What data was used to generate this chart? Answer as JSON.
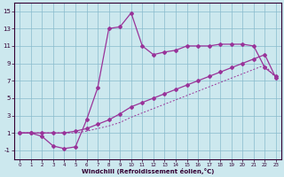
{
  "xlabel": "Windchill (Refroidissement éolien,°C)",
  "background_color": "#cce8ee",
  "grid_color": "#88bbcc",
  "line_color": "#993399",
  "xlim": [
    -0.5,
    23.5
  ],
  "ylim": [
    -2.0,
    16.0
  ],
  "xticks": [
    0,
    1,
    2,
    3,
    4,
    5,
    6,
    7,
    8,
    9,
    10,
    11,
    12,
    13,
    14,
    15,
    16,
    17,
    18,
    19,
    20,
    21,
    22,
    23
  ],
  "yticks": [
    -1,
    1,
    3,
    5,
    7,
    9,
    11,
    13,
    15
  ],
  "series1_x": [
    0,
    1,
    2,
    3,
    4,
    5,
    6,
    7,
    8,
    9,
    10,
    11,
    12,
    13,
    14,
    15,
    16,
    17,
    18,
    19,
    20,
    21,
    22,
    23
  ],
  "series1_y": [
    1.0,
    1.0,
    0.6,
    -0.5,
    -0.8,
    -0.6,
    2.5,
    6.2,
    13.0,
    13.2,
    14.8,
    11.0,
    10.0,
    10.3,
    10.5,
    11.0,
    11.0,
    11.0,
    11.2,
    11.2,
    11.2,
    11.0,
    8.5,
    7.5
  ],
  "series2_x": [
    0,
    1,
    2,
    3,
    4,
    5,
    6,
    7,
    8,
    9,
    10,
    11,
    12,
    13,
    14,
    15,
    16,
    17,
    18,
    19,
    20,
    21,
    22,
    23
  ],
  "series2_y": [
    1.0,
    1.0,
    1.0,
    1.0,
    1.0,
    1.2,
    1.5,
    2.0,
    2.5,
    3.2,
    4.0,
    4.5,
    5.0,
    5.5,
    6.0,
    6.5,
    7.0,
    7.5,
    8.0,
    8.5,
    9.0,
    9.5,
    10.0,
    7.3
  ],
  "series3_x": [
    0,
    1,
    2,
    3,
    4,
    5,
    6,
    7,
    8,
    9,
    10,
    11,
    12,
    13,
    14,
    15,
    16,
    17,
    18,
    19,
    20,
    21,
    22,
    23
  ],
  "series3_y": [
    1.0,
    1.0,
    1.0,
    1.0,
    1.0,
    1.0,
    1.2,
    1.5,
    1.8,
    2.2,
    2.8,
    3.3,
    3.8,
    4.3,
    4.8,
    5.3,
    5.8,
    6.3,
    6.8,
    7.3,
    7.8,
    8.3,
    8.8,
    7.3
  ]
}
